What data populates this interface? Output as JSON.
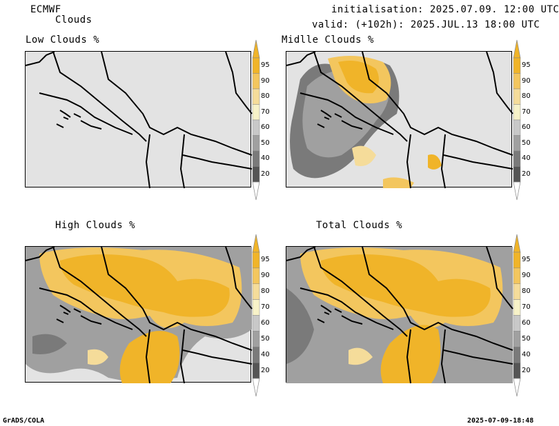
{
  "header": {
    "model": "ECMWF",
    "parameter": "Clouds",
    "initialisation": "initialisation: 2025.07.09. 12:00 UTC",
    "valid": "valid: (+102h): 2025.JUL.13 18:00 UTC"
  },
  "panels": [
    {
      "title": "Low Clouds %"
    },
    {
      "title": "Midlle Clouds %"
    },
    {
      "title": "High Clouds %"
    },
    {
      "title": "Total Clouds %"
    }
  ],
  "colorbar": {
    "levels": [
      "95",
      "90",
      "80",
      "70",
      "60",
      "50",
      "40",
      "20"
    ],
    "colors": [
      "#f0b429",
      "#f3c65e",
      "#f5dc9a",
      "#f7f2c8",
      "#c8c8c8",
      "#a0a0a0",
      "#7a7a7a",
      "#555555"
    ],
    "low_cap_color": "#ffffff",
    "high_cap_color": "#f0b429"
  },
  "footer": {
    "left": "GrADS/COLA",
    "right": "2025-07-09-18:48"
  }
}
